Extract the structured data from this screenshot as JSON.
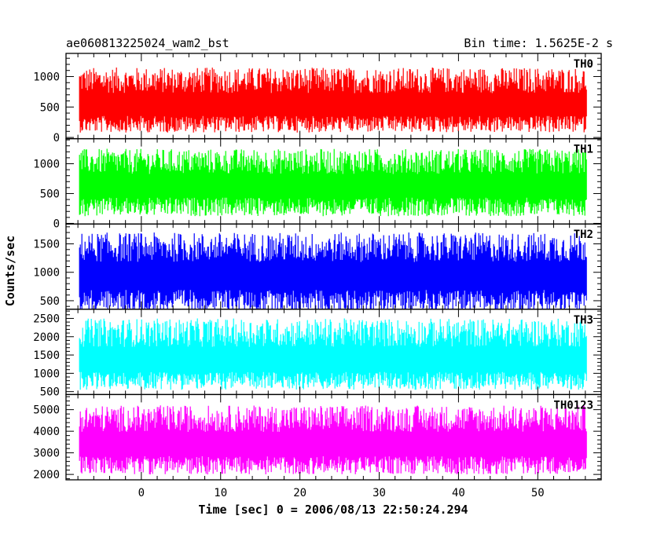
{
  "chart_data": {
    "type": "line",
    "title": "ae060813225024_wam2_bst",
    "bin_time_label": "Bin time: 1.5625E-2 s",
    "xlabel": "Time [sec] 0 = 2006/08/13 22:50:24.294",
    "ylabel": "Counts/sec",
    "xlim": [
      -9.5,
      58
    ],
    "x_ticks": [
      0,
      10,
      20,
      30,
      40,
      50
    ],
    "data_x_range": [
      -7.8,
      56.2
    ],
    "grid": false,
    "legend": "none",
    "series": [
      {
        "name": "TH0",
        "color": "#ff0000",
        "ylim": [
          -20,
          1380
        ],
        "y_ticks": [
          0,
          500,
          1000
        ],
        "mean": 500,
        "low": 80,
        "high": 1150
      },
      {
        "name": "TH1",
        "color": "#00ff00",
        "ylim": [
          -10,
          1420
        ],
        "y_ticks": [
          0,
          500,
          1000
        ],
        "mean": 600,
        "low": 120,
        "high": 1250
      },
      {
        "name": "TH2",
        "color": "#0000ff",
        "ylim": [
          350,
          1850
        ],
        "y_ticks": [
          500,
          1000,
          1500
        ],
        "mean": 900,
        "low": 300,
        "high": 1700
      },
      {
        "name": "TH3",
        "color": "#00ffff",
        "ylim": [
          420,
          2750
        ],
        "y_ticks": [
          500,
          1000,
          1500,
          2000,
          2500
        ],
        "mean": 1300,
        "low": 550,
        "high": 2500
      },
      {
        "name": "TH0123",
        "color": "#ff00ff",
        "ylim": [
          1750,
          5700
        ],
        "y_ticks": [
          2000,
          3000,
          4000,
          5000
        ],
        "mean": 3300,
        "low": 2000,
        "high": 5200
      }
    ]
  }
}
